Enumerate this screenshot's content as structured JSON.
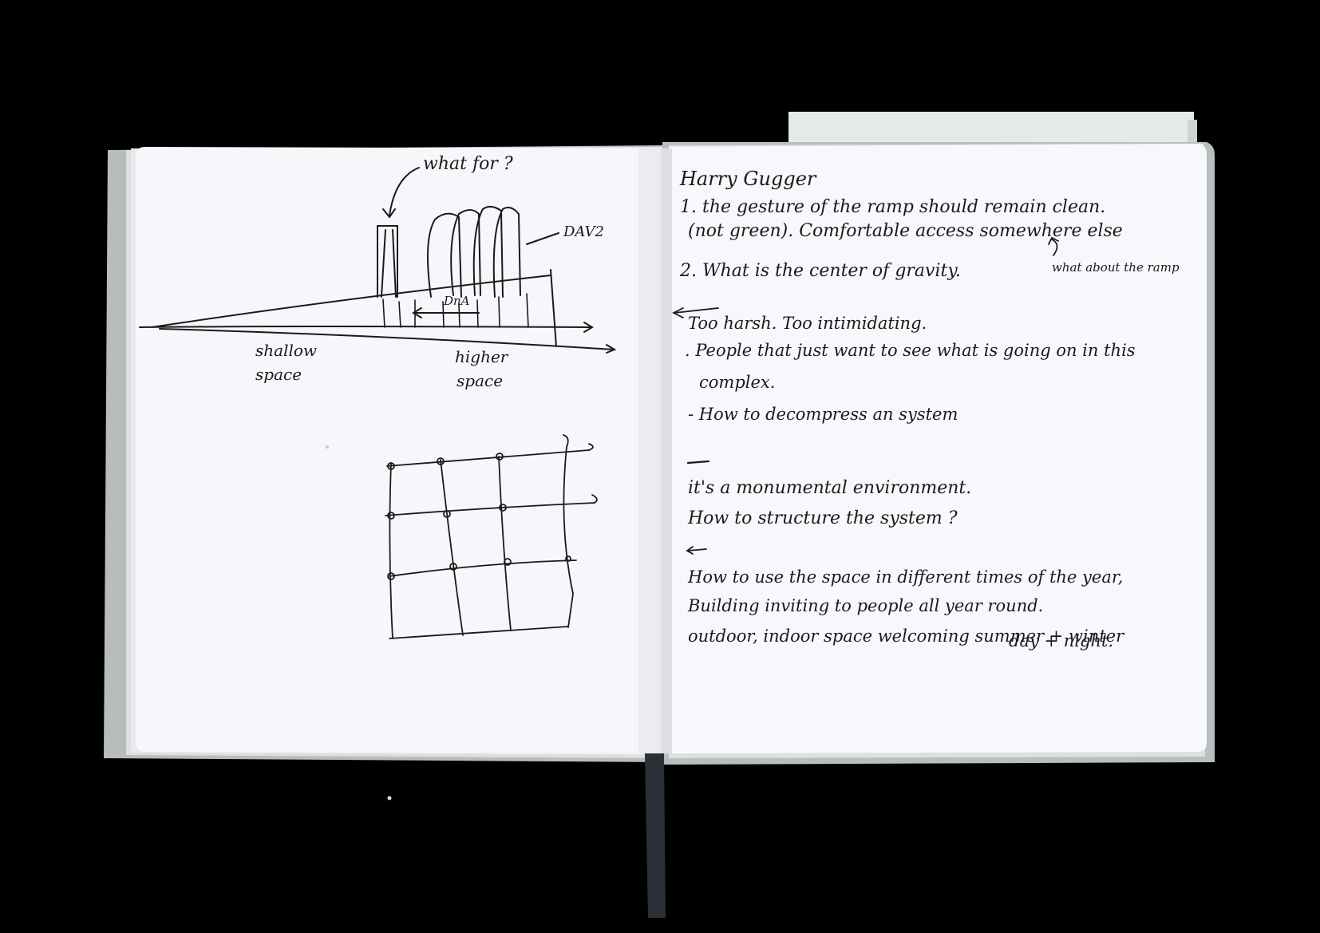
{
  "photo": {
    "subject": "Open sketchbook with handwritten notes and pen sketches",
    "colors": {
      "background": "#000000",
      "paper": "#f7f7fb",
      "cover": "#b7bcbc",
      "ink": "#1a1a1a",
      "bookmark": "#2b3036",
      "loose_sheet": "#e9ecec"
    }
  },
  "left_page": {
    "sketch_section": {
      "annotation_top": "what for ?",
      "annotation_right": "DAV2",
      "label_inner": "DnA",
      "label_left": [
        "shallow",
        "space"
      ],
      "label_right": [
        "higher",
        "space"
      ]
    },
    "grid_sketch": {
      "rows": 4,
      "cols": 4
    }
  },
  "right_page": {
    "heading": "Harry Gugger",
    "notes": [
      "1. the gesture of the ramp should remain clean.",
      "(not green). Comfortable access somewhere else",
      "2. What is the center of gravity.",
      "Too harsh. Too intimidating.",
      ". People that just want to see what is going on in this",
      "complex.",
      "- How to decompress an system",
      "it's a monumental environment.",
      "How to structure the system ?",
      "How to use the space in different times of the year,",
      "Building inviting to people all year round.",
      "outdoor, indoor space welcoming summer + winter",
      "day + night."
    ],
    "margin_note": "what about the ramp"
  }
}
